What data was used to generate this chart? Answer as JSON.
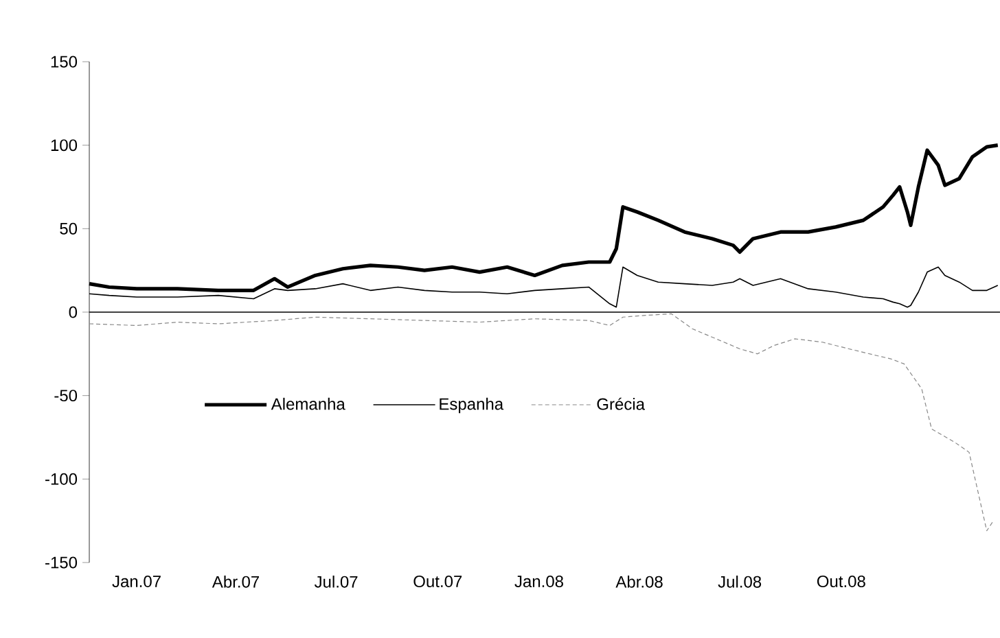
{
  "chart_data": {
    "type": "line",
    "x": [
      "2006-11-19",
      "2006-12-07",
      "2007-01-01",
      "2007-02-07",
      "2007-03-16",
      "2007-04-17",
      "2007-05-06",
      "2007-05-18",
      "2007-06-12",
      "2007-07-07",
      "2007-08-01",
      "2007-08-26",
      "2007-09-19",
      "2007-10-14",
      "2007-11-08",
      "2007-12-03",
      "2007-12-28",
      "2008-01-22",
      "2008-02-15",
      "2008-03-05",
      "2008-03-11",
      "2008-03-17",
      "2008-03-30",
      "2008-04-18",
      "2008-05-12",
      "2008-06-06",
      "2008-06-25",
      "2008-07-01",
      "2008-07-13",
      "2008-08-07",
      "2008-09-01",
      "2008-09-26",
      "2008-10-21",
      "2008-11-08",
      "2008-11-17",
      "2008-11-23",
      "2008-11-30",
      "2008-12-03",
      "2008-12-10",
      "2008-12-18",
      "2008-12-28",
      "2009-01-03",
      "2009-01-16",
      "2009-01-28",
      "2009-02-10",
      "2009-02-20"
    ],
    "series": [
      {
        "name": "Alemanha",
        "color": "#000000",
        "values": [
          17,
          15,
          14,
          14,
          13,
          13,
          20,
          15,
          22,
          26,
          28,
          27,
          25,
          27,
          24,
          27,
          22,
          28,
          30,
          30,
          38,
          63,
          60,
          55,
          48,
          44,
          40,
          36,
          44,
          48,
          48,
          51,
          55,
          63,
          70,
          75,
          60,
          52,
          75,
          97,
          88,
          76,
          80,
          93,
          99,
          100
        ]
      },
      {
        "name": "Espanha",
        "color": "#000000",
        "values": [
          11,
          10,
          9,
          9,
          10,
          8,
          14,
          13,
          14,
          17,
          13,
          15,
          13,
          12,
          12,
          11,
          13,
          14,
          15,
          5,
          3,
          27,
          22,
          18,
          17,
          16,
          18,
          20,
          16,
          20,
          14,
          12,
          9,
          8,
          6,
          5,
          3,
          4,
          12,
          24,
          27,
          22,
          18,
          13,
          13,
          16
        ]
      },
      {
        "name": "Grécia",
        "color": "#888888",
        "line_style": "dashed",
        "x": [
          "2006-11-19",
          "2007-01-01",
          "2007-02-07",
          "2007-03-16",
          "2007-05-06",
          "2007-06-12",
          "2007-08-01",
          "2007-09-19",
          "2007-11-08",
          "2007-12-28",
          "2008-02-15",
          "2008-03-05",
          "2008-03-17",
          "2008-04-05",
          "2008-04-30",
          "2008-05-19",
          "2008-06-06",
          "2008-07-01",
          "2008-07-17",
          "2008-08-01",
          "2008-08-20",
          "2008-09-14",
          "2008-10-08",
          "2008-11-02",
          "2008-11-15",
          "2008-11-27",
          "2008-12-13",
          "2008-12-22",
          "2009-01-12",
          "2009-01-25",
          "2009-02-10",
          "2009-02-16"
        ],
        "values": [
          -7,
          -8,
          -6,
          -7,
          -5,
          -3,
          -4,
          -5,
          -6,
          -4,
          -5,
          -8,
          -3,
          -2,
          -1,
          -10,
          -15,
          -22,
          -25,
          -20,
          -16,
          -18,
          -22,
          -26,
          -28,
          -31,
          -46,
          -70,
          -78,
          -84,
          -131,
          -125
        ]
      }
    ],
    "xlim": [
      "2006-11-19",
      "2009-02-22"
    ],
    "xticks": [
      {
        "value": "2007-01-01",
        "label": "Jan.07"
      },
      {
        "value": "2007-04-01",
        "label": "Abr.07"
      },
      {
        "value": "2007-07-01",
        "label": "Jul.07"
      },
      {
        "value": "2007-10-01",
        "label": "Out.07"
      },
      {
        "value": "2008-01-01",
        "label": "Jan.08"
      },
      {
        "value": "2008-04-01",
        "label": "Abr.08"
      },
      {
        "value": "2008-07-01",
        "label": "Jul.08"
      },
      {
        "value": "2008-10-01",
        "label": "Out.08"
      }
    ],
    "ylim": [
      -150,
      150
    ],
    "yticks": [
      -150,
      -100,
      -50,
      0,
      50,
      100,
      150
    ],
    "legend": "left",
    "marker": "none",
    "line_style": "solid"
  }
}
